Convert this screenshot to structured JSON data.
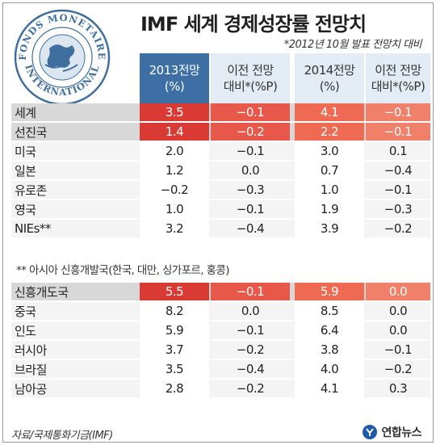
{
  "title": "IMF 세계 경제성장률 전망치",
  "note": "*2012년 10월 발표 전망치 대비",
  "logo_text": "FONDS MONETAIRE INTERNATIONAL",
  "headers": {
    "col1_line1": "2013전망",
    "col1_line2": "(%)",
    "col2_line1": "이전 전망",
    "col2_line2": "대비*(%P)",
    "col3_line1": "2014전망",
    "col3_line2": "(%)",
    "col4_line1": "이전 전망",
    "col4_line2": "대비*(%P)"
  },
  "footnote": "** 아시아 신흥개발국(한국, 대만, 싱가포르, 홍콩)",
  "source": "자료/국제통화기금(IMF)",
  "brand": "연합뉴스",
  "colors": {
    "header_dark": "#3d6fa5",
    "header_light": "#e3ecf4",
    "highlight_red": "#d93a33",
    "highlight_orange": "#ef6a52"
  },
  "chart_data": {
    "type": "table",
    "columns": [
      "2013전망(%)",
      "이전 전망 대비*(%P)",
      "2014전망(%)",
      "이전 전망 대비*(%P)"
    ],
    "groups": [
      {
        "rows": [
          {
            "label": "세계",
            "highlight": true,
            "values": [
              "3.5",
              "−0.1",
              "4.1",
              "−0.1"
            ]
          },
          {
            "label": "선진국",
            "highlight": true,
            "values": [
              "1.4",
              "−0.2",
              "2.2",
              "−0.1"
            ]
          },
          {
            "label": "미국",
            "highlight": false,
            "values": [
              "2.0",
              "−0.1",
              "3.0",
              "0.1"
            ]
          },
          {
            "label": "일본",
            "highlight": false,
            "values": [
              "1.2",
              "0.0",
              "0.7",
              "−0.4"
            ]
          },
          {
            "label": "유로존",
            "highlight": false,
            "values": [
              "−0.2",
              "−0.3",
              "1.0",
              "−0.1"
            ]
          },
          {
            "label": "영국",
            "highlight": false,
            "values": [
              "1.0",
              "−0.1",
              "1.9",
              "−0.3"
            ]
          },
          {
            "label": "NIEs**",
            "highlight": false,
            "values": [
              "3.2",
              "−0.4",
              "3.9",
              "−0.2"
            ]
          }
        ]
      },
      {
        "rows": [
          {
            "label": "신흥개도국",
            "highlight": true,
            "values": [
              "5.5",
              "−0.1",
              "5.9",
              "0.0"
            ]
          },
          {
            "label": "중국",
            "highlight": false,
            "values": [
              "8.2",
              "0.0",
              "8.5",
              "0.0"
            ]
          },
          {
            "label": "인도",
            "highlight": false,
            "values": [
              "5.9",
              "−0.1",
              "6.4",
              "0.0"
            ]
          },
          {
            "label": "러시아",
            "highlight": false,
            "values": [
              "3.7",
              "−0.2",
              "3.8",
              "−0.1"
            ]
          },
          {
            "label": "브라질",
            "highlight": false,
            "values": [
              "3.5",
              "−0.4",
              "4.0",
              "−0.2"
            ]
          },
          {
            "label": "남아공",
            "highlight": false,
            "values": [
              "2.8",
              "−0.2",
              "4.1",
              "0.3"
            ]
          }
        ]
      }
    ]
  }
}
